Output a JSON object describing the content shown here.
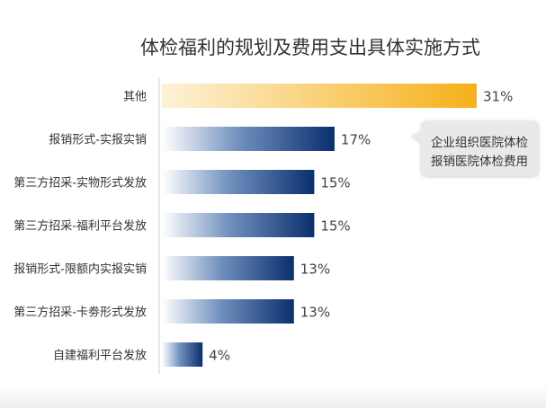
{
  "chart_data": {
    "type": "bar",
    "orientation": "horizontal",
    "title": "体检福利的规划及费用支出具体实施方式",
    "categories": [
      "其他",
      "报销形式-实报实销",
      "第三方招采-实物形式发放",
      "第三方招采-福利平台发放",
      "报销形式-限额内实报实销",
      "第三方招采-卡劵形式发放",
      "自建福利平台发放"
    ],
    "values": [
      31,
      17,
      15,
      15,
      13,
      13,
      4
    ],
    "value_labels": [
      "31%",
      "17%",
      "15%",
      "15%",
      "13%",
      "13%",
      "4%"
    ],
    "unit": "%",
    "xlim": [
      0,
      31
    ],
    "grid": false,
    "highlight_index": 0,
    "colors": {
      "highlight_start": "#fdf2d8",
      "highlight_end": "#f6b019",
      "bar_start": "#ffffff",
      "bar_end": "#0a2f6e"
    },
    "annotation": {
      "lines": [
        "企业组织医院体检",
        "报销医院体检费用"
      ],
      "target_index": 1
    }
  }
}
